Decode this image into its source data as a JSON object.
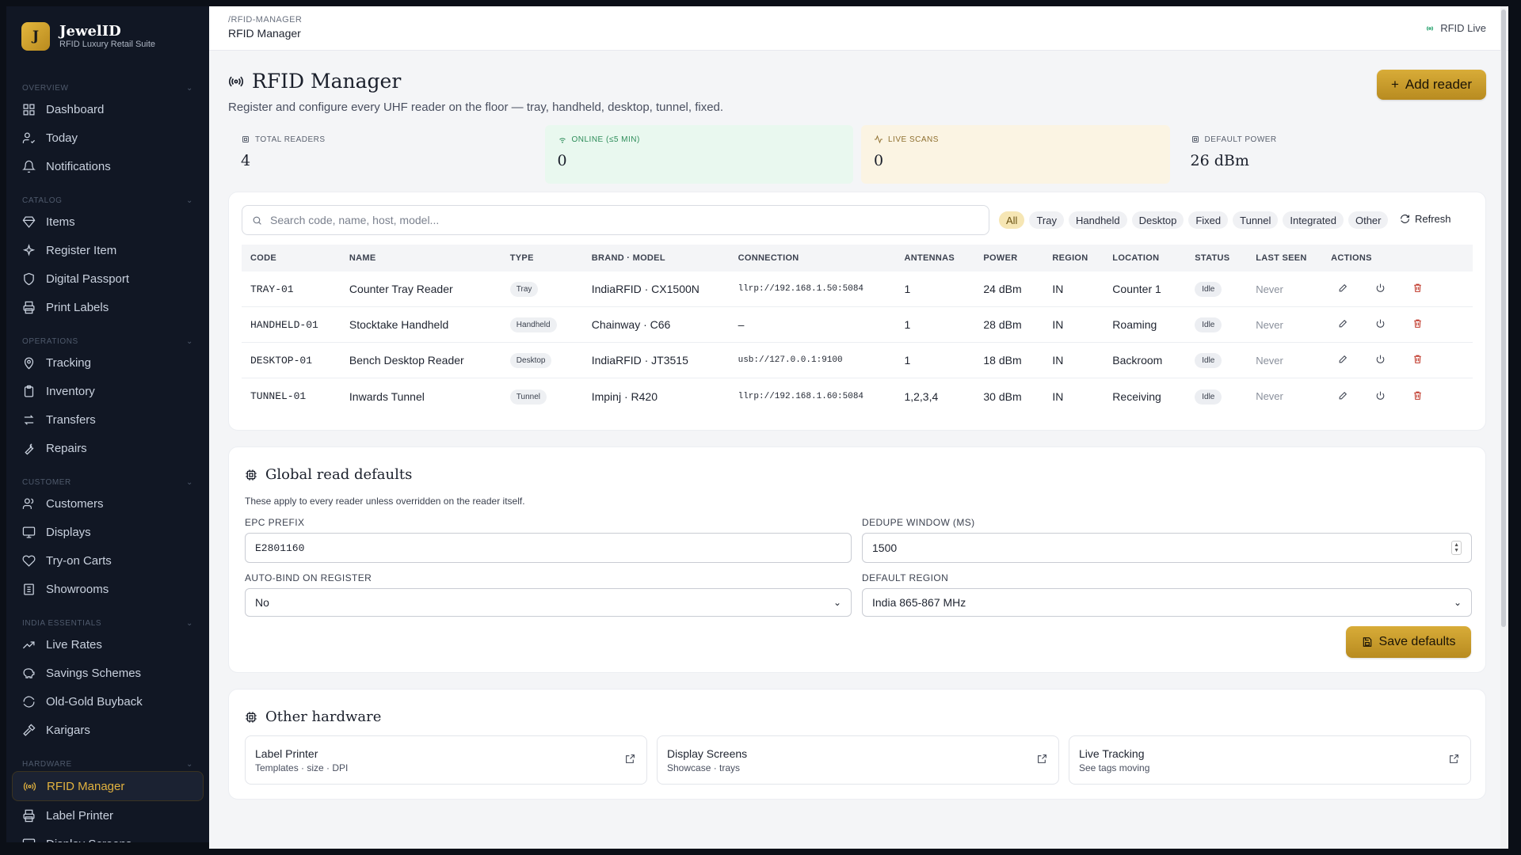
{
  "brand": {
    "logo_letter": "J",
    "name": "JewelID",
    "subtitle": "RFID Luxury Retail Suite"
  },
  "sidebar": {
    "sections": [
      {
        "label": "OVERVIEW",
        "items": [
          {
            "label": "Dashboard",
            "icon": "grid-icon"
          },
          {
            "label": "Today",
            "icon": "user-check-icon"
          },
          {
            "label": "Notifications",
            "icon": "bell-icon"
          }
        ]
      },
      {
        "label": "CATALOG",
        "items": [
          {
            "label": "Items",
            "icon": "diamond-icon"
          },
          {
            "label": "Register Item",
            "icon": "sparkle-icon"
          },
          {
            "label": "Digital Passport",
            "icon": "shield-icon"
          },
          {
            "label": "Print Labels",
            "icon": "printer-icon"
          }
        ]
      },
      {
        "label": "OPERATIONS",
        "items": [
          {
            "label": "Tracking",
            "icon": "map-pin-icon"
          },
          {
            "label": "Inventory",
            "icon": "clipboard-icon"
          },
          {
            "label": "Transfers",
            "icon": "arrows-icon"
          },
          {
            "label": "Repairs",
            "icon": "wrench-icon"
          }
        ]
      },
      {
        "label": "CUSTOMER",
        "items": [
          {
            "label": "Customers",
            "icon": "users-icon"
          },
          {
            "label": "Displays",
            "icon": "monitor-icon"
          },
          {
            "label": "Try-on Carts",
            "icon": "heart-icon"
          },
          {
            "label": "Showrooms",
            "icon": "building-icon"
          }
        ]
      },
      {
        "label": "INDIA ESSENTIALS",
        "items": [
          {
            "label": "Live Rates",
            "icon": "trending-up-icon"
          },
          {
            "label": "Savings Schemes",
            "icon": "piggy-bank-icon"
          },
          {
            "label": "Old-Gold Buyback",
            "icon": "refresh-icon"
          },
          {
            "label": "Karigars",
            "icon": "hammer-icon"
          }
        ]
      },
      {
        "label": "HARDWARE",
        "items": [
          {
            "label": "RFID Manager",
            "icon": "radio-icon",
            "active": true
          },
          {
            "label": "Label Printer",
            "icon": "printer-icon"
          },
          {
            "label": "Display Screens",
            "icon": "monitor-icon"
          }
        ]
      }
    ]
  },
  "topbar": {
    "breadcrumb": "/RFID-MANAGER",
    "title": "RFID Manager",
    "live_label": "RFID Live"
  },
  "page": {
    "title": "RFID Manager",
    "description": "Register and configure every UHF reader on the floor — tray, handheld, desktop, tunnel, fixed.",
    "add_button": "Add reader"
  },
  "stats": [
    {
      "label": "TOTAL READERS",
      "value": "4"
    },
    {
      "label": "ONLINE (≤5 MIN)",
      "value": "0"
    },
    {
      "label": "LIVE SCANS",
      "value": "0"
    },
    {
      "label": "DEFAULT POWER",
      "value": "26 dBm"
    }
  ],
  "readers": {
    "search_placeholder": "Search code, name, host, model...",
    "filters": [
      "All",
      "Tray",
      "Handheld",
      "Desktop",
      "Fixed",
      "Tunnel",
      "Integrated",
      "Other"
    ],
    "refresh_label": "Refresh",
    "columns": [
      "CODE",
      "NAME",
      "TYPE",
      "BRAND · MODEL",
      "CONNECTION",
      "ANTENNAS",
      "POWER",
      "REGION",
      "LOCATION",
      "STATUS",
      "LAST SEEN",
      "ACTIONS"
    ],
    "rows": [
      {
        "code": "TRAY-01",
        "name": "Counter Tray Reader",
        "type": "Tray",
        "brand_model": "IndiaRFID · CX1500N",
        "connection": "llrp://192.168.1.50:5084",
        "antennas": "1",
        "power": "24 dBm",
        "region": "IN",
        "location": "Counter 1",
        "status": "Idle",
        "last_seen": "Never"
      },
      {
        "code": "HANDHELD-01",
        "name": "Stocktake Handheld",
        "type": "Handheld",
        "brand_model": "Chainway · C66",
        "connection": "–",
        "antennas": "1",
        "power": "28 dBm",
        "region": "IN",
        "location": "Roaming",
        "status": "Idle",
        "last_seen": "Never"
      },
      {
        "code": "DESKTOP-01",
        "name": "Bench Desktop Reader",
        "type": "Desktop",
        "brand_model": "IndiaRFID · JT3515",
        "connection": "usb://127.0.0.1:9100",
        "antennas": "1",
        "power": "18 dBm",
        "region": "IN",
        "location": "Backroom",
        "status": "Idle",
        "last_seen": "Never"
      },
      {
        "code": "TUNNEL-01",
        "name": "Inwards Tunnel",
        "type": "Tunnel",
        "brand_model": "Impinj · R420",
        "connection": "llrp://192.168.1.60:5084",
        "antennas": "1,2,3,4",
        "power": "30 dBm",
        "region": "IN",
        "location": "Receiving",
        "status": "Idle",
        "last_seen": "Never"
      }
    ]
  },
  "defaults": {
    "title": "Global read defaults",
    "hint": "These apply to every reader unless overridden on the reader itself.",
    "epc_prefix_label": "EPC PREFIX",
    "epc_prefix_value": "E2801160",
    "dedupe_label": "DEDUPE WINDOW (MS)",
    "dedupe_value": "1500",
    "autobind_label": "AUTO-BIND ON REGISTER",
    "autobind_value": "No",
    "region_label": "DEFAULT REGION",
    "region_value": "India 865-867 MHz",
    "save_button": "Save defaults"
  },
  "hardware": {
    "title": "Other hardware",
    "items": [
      {
        "title": "Label Printer",
        "sub": "Templates · size · DPI"
      },
      {
        "title": "Display Screens",
        "sub": "Showcase · trays"
      },
      {
        "title": "Live Tracking",
        "sub": "See tags moving"
      }
    ]
  },
  "colors": {
    "accent_gold": "#d4a834",
    "sidebar_bg": "#111724",
    "online_green": "#22a06b",
    "delete_red": "#c0392b"
  }
}
